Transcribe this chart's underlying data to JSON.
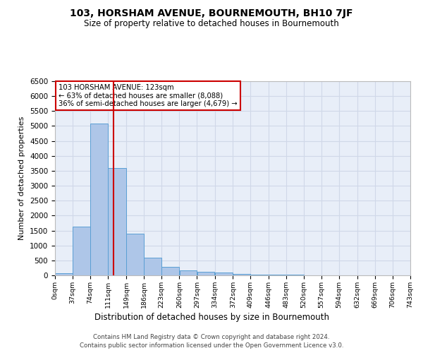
{
  "title": "103, HORSHAM AVENUE, BOURNEMOUTH, BH10 7JF",
  "subtitle": "Size of property relative to detached houses in Bournemouth",
  "xlabel": "Distribution of detached houses by size in Bournemouth",
  "ylabel": "Number of detached properties",
  "bin_edges": [
    0,
    37,
    74,
    111,
    149,
    186,
    223,
    260,
    297,
    334,
    372,
    409,
    446,
    483,
    520,
    557,
    594,
    632,
    669,
    706,
    743
  ],
  "bin_labels": [
    "0sqm",
    "37sqm",
    "74sqm",
    "111sqm",
    "149sqm",
    "186sqm",
    "223sqm",
    "260sqm",
    "297sqm",
    "334sqm",
    "372sqm",
    "409sqm",
    "446sqm",
    "483sqm",
    "520sqm",
    "557sqm",
    "594sqm",
    "632sqm",
    "669sqm",
    "706sqm",
    "743sqm"
  ],
  "bar_heights": [
    60,
    1640,
    5080,
    3600,
    1400,
    580,
    290,
    155,
    130,
    90,
    55,
    30,
    20,
    15,
    10,
    5,
    3,
    2,
    1,
    1
  ],
  "bar_color": "#aec6e8",
  "bar_edge_color": "#5a9fd4",
  "property_line_x": 123,
  "annotation_title": "103 HORSHAM AVENUE: 123sqm",
  "annotation_line1": "← 63% of detached houses are smaller (8,088)",
  "annotation_line2": "36% of semi-detached houses are larger (4,679) →",
  "annotation_box_color": "#ffffff",
  "annotation_box_edge": "#cc0000",
  "red_line_color": "#cc0000",
  "ylim": [
    0,
    6500
  ],
  "yticks": [
    0,
    500,
    1000,
    1500,
    2000,
    2500,
    3000,
    3500,
    4000,
    4500,
    5000,
    5500,
    6000,
    6500
  ],
  "grid_color": "#d0d8e8",
  "background_color": "#e8eef8",
  "fig_background": "#ffffff",
  "footer_line1": "Contains HM Land Registry data © Crown copyright and database right 2024.",
  "footer_line2": "Contains public sector information licensed under the Open Government Licence v3.0."
}
